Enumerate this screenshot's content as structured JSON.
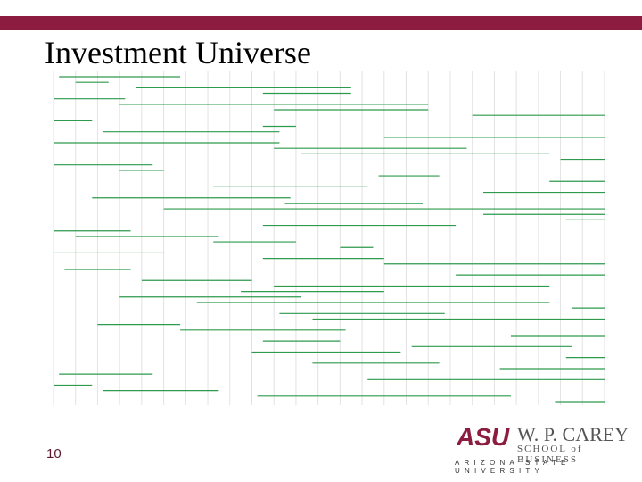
{
  "title": "Investment Universe",
  "page_number": "10",
  "logo": {
    "mark": "ASU",
    "name": "W. P. CAREY",
    "school": "SCHOOL of BUSINESS",
    "university": "ARIZONA STATE UNIVERSITY"
  },
  "chart_data": {
    "type": "timeline",
    "color": "#2e9a4e",
    "grid": true,
    "xlim": [
      0,
      100
    ],
    "starts": [
      1,
      4,
      15,
      38,
      0,
      12,
      40,
      76,
      0,
      38,
      9,
      60,
      0,
      40,
      45,
      92,
      0,
      12,
      59,
      90,
      29,
      78,
      7,
      42,
      20,
      78,
      93,
      38,
      0,
      4,
      29,
      52,
      0,
      38,
      60,
      2,
      73,
      16,
      40,
      34,
      12,
      26,
      94,
      41,
      47,
      8,
      23,
      83,
      38,
      65,
      36,
      93,
      47,
      81,
      1,
      57,
      0,
      9,
      37,
      91
    ],
    "ends": [
      23,
      10,
      54,
      54,
      13,
      68,
      68,
      100,
      7,
      44,
      41,
      100,
      41,
      75,
      90,
      100,
      18,
      20,
      70,
      100,
      57,
      100,
      43,
      67,
      100,
      100,
      100,
      73,
      14,
      30,
      44,
      58,
      20,
      60,
      100,
      14,
      100,
      36,
      90,
      60,
      45,
      90,
      100,
      71,
      100,
      23,
      53,
      100,
      52,
      94,
      63,
      100,
      70,
      100,
      18,
      100,
      7,
      30,
      83,
      100
    ]
  }
}
